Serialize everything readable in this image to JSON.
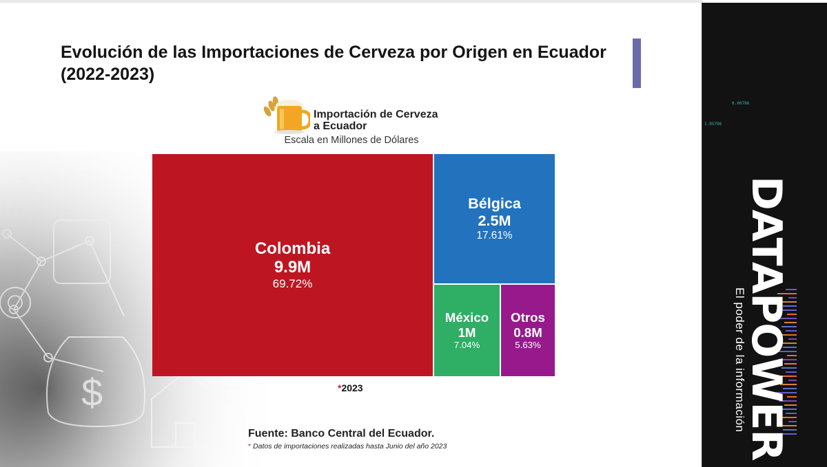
{
  "title": "Evolución de las Importaciones de Cerveza por Origen en Ecuador (2022-2023)",
  "chart_header": {
    "title_line1": "Importación de Cerveza",
    "title_line2": "a Ecuador",
    "subtitle": "Escala en Millones de Dólares"
  },
  "chart_data": {
    "type": "treemap",
    "unit": "Millones de Dólares",
    "items": [
      {
        "name": "Colombia",
        "value_label": "9.9M",
        "value": 9.9,
        "percent_label": "69.72%",
        "percent": 69.72,
        "color": "#bd1622"
      },
      {
        "name": "Bélgica",
        "value_label": "2.5M",
        "value": 2.5,
        "percent_label": "17.61%",
        "percent": 17.61,
        "color": "#2272be"
      },
      {
        "name": "México",
        "value_label": "1M",
        "value": 1.0,
        "percent_label": "7.04%",
        "percent": 7.04,
        "color": "#2fae66"
      },
      {
        "name": "Otros",
        "value_label": "0.8M",
        "value": 0.8,
        "percent_label": "5.63%",
        "percent": 5.63,
        "color": "#97198c"
      }
    ],
    "year_label": "2023",
    "year_marker": "*"
  },
  "source": "Fuente: Banco Central del Ecuador.",
  "note": {
    "marker": "*",
    "text": "Datos de importaciones realizadas hasta Junio del año 2023"
  },
  "brand": {
    "name": "DATAPOWER",
    "tagline": "El poder de la información",
    "decor_numbers": [
      "0.00796",
      "1.05796"
    ]
  },
  "colors": {
    "accent_bar": "#6b6aa8",
    "brand_panel": "#121212",
    "star": "#cc1f2b"
  }
}
